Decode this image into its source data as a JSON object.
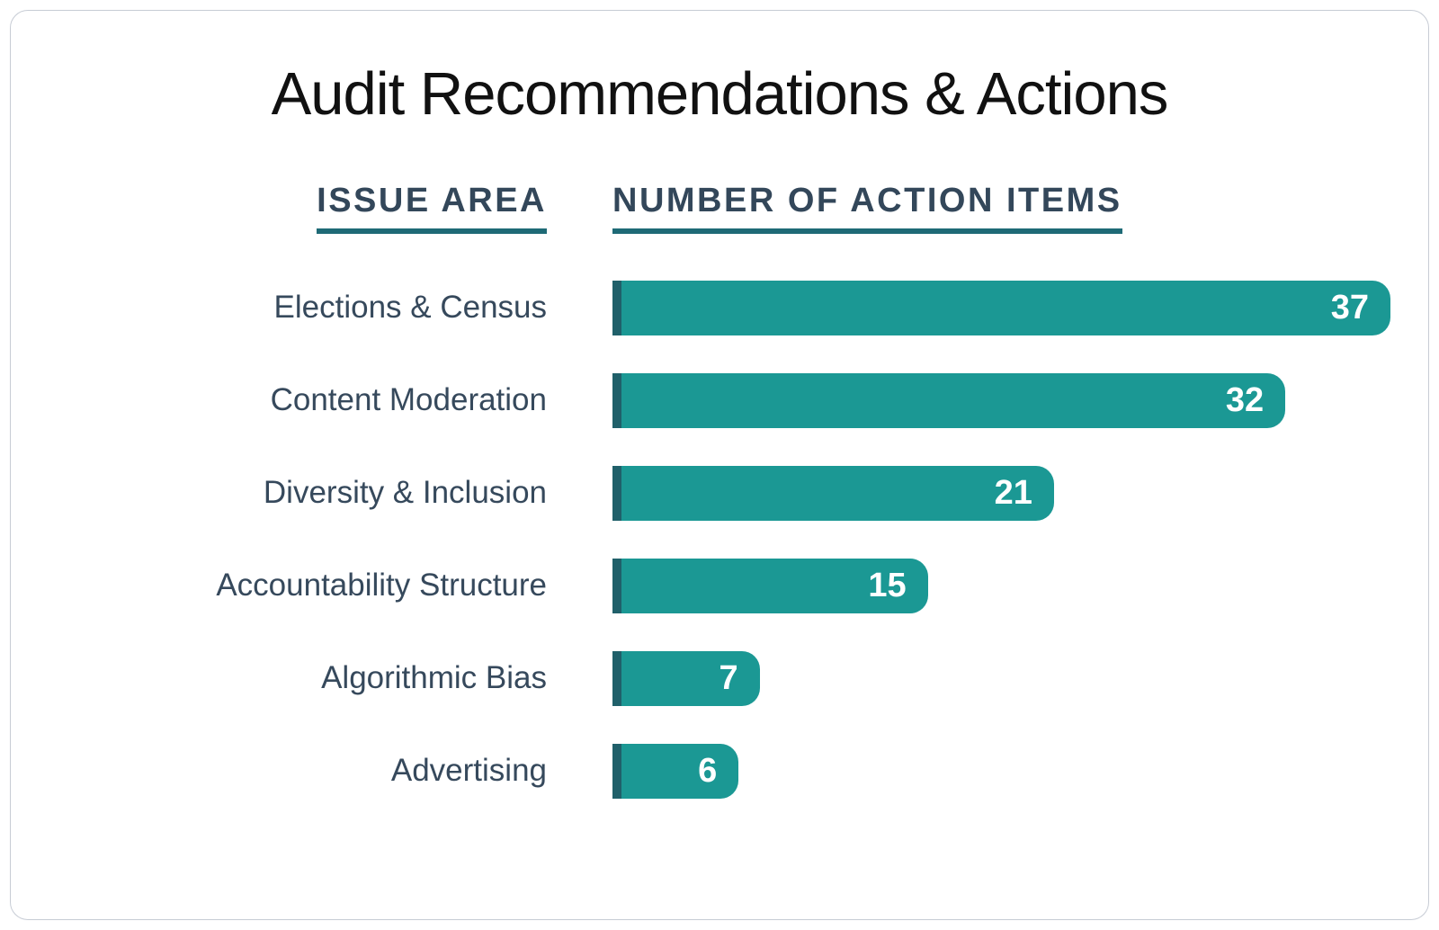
{
  "title": "Audit Recommendations & Actions",
  "columns": {
    "issue_area": "ISSUE AREA",
    "action_items": "NUMBER OF ACTION ITEMS"
  },
  "colors": {
    "bar_fill": "#1b9894",
    "bar_edge": "#20606a",
    "value_text": "#ffffff",
    "label_text": "#36495c",
    "header_text": "#33475a",
    "header_underline": "#1e6a76",
    "title_text": "#111111",
    "card_border": "#c7ccd5"
  },
  "chart_data": {
    "type": "bar",
    "orientation": "horizontal",
    "title": "Audit Recommendations & Actions",
    "column_headers": [
      "ISSUE AREA",
      "NUMBER OF ACTION ITEMS"
    ],
    "categories": [
      "Elections & Census",
      "Content Moderation",
      "Diversity & Inclusion",
      "Accountability Structure",
      "Algorithmic Bias",
      "Advertising"
    ],
    "values": [
      37,
      32,
      21,
      15,
      7,
      6
    ],
    "xlabel": "NUMBER OF ACTION ITEMS",
    "ylabel": "ISSUE AREA",
    "xlim": [
      0,
      37
    ],
    "grid": false,
    "legend": false,
    "value_label_position": "inside-end",
    "bar_style": "rounded-right-corners, dark left edge stripe"
  }
}
